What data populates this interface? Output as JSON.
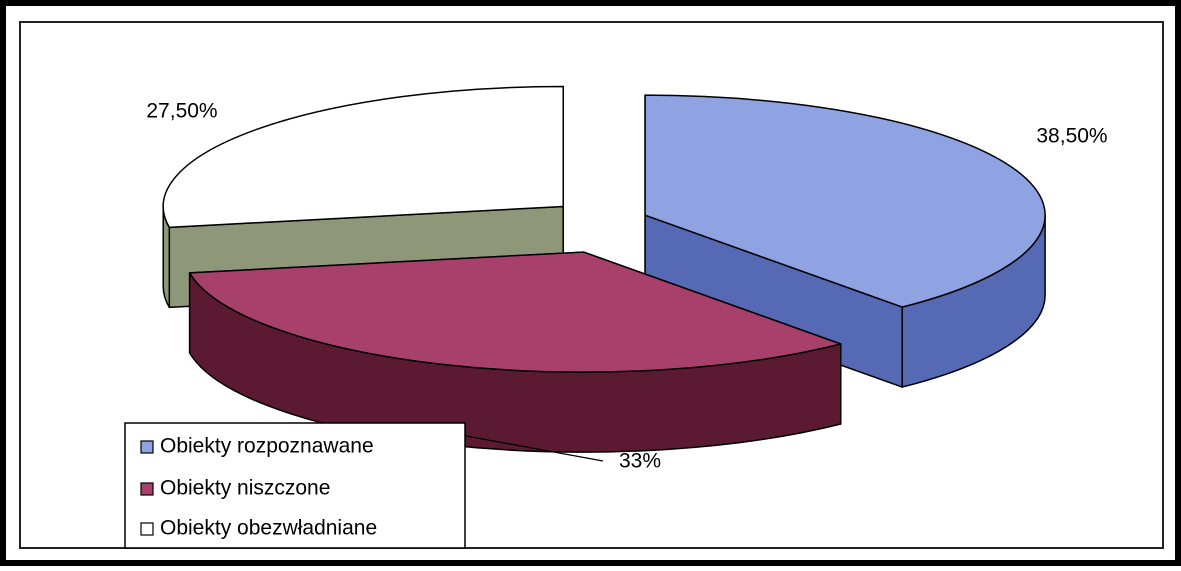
{
  "chart_data": {
    "type": "pie3d",
    "categories": [
      "Obiekty rozpoznawane",
      "Obiekty niszczone",
      "Obiekty obezwładniane"
    ],
    "values": [
      38.5,
      33,
      27.5
    ],
    "value_labels": [
      "38,50%",
      "33%",
      "27,50%"
    ],
    "colors": [
      "#8fa2e2",
      "#a8406c",
      "#ffffff"
    ],
    "side_colors": [
      "#5669b4",
      "#5c1a32",
      "#8e9878"
    ]
  }
}
